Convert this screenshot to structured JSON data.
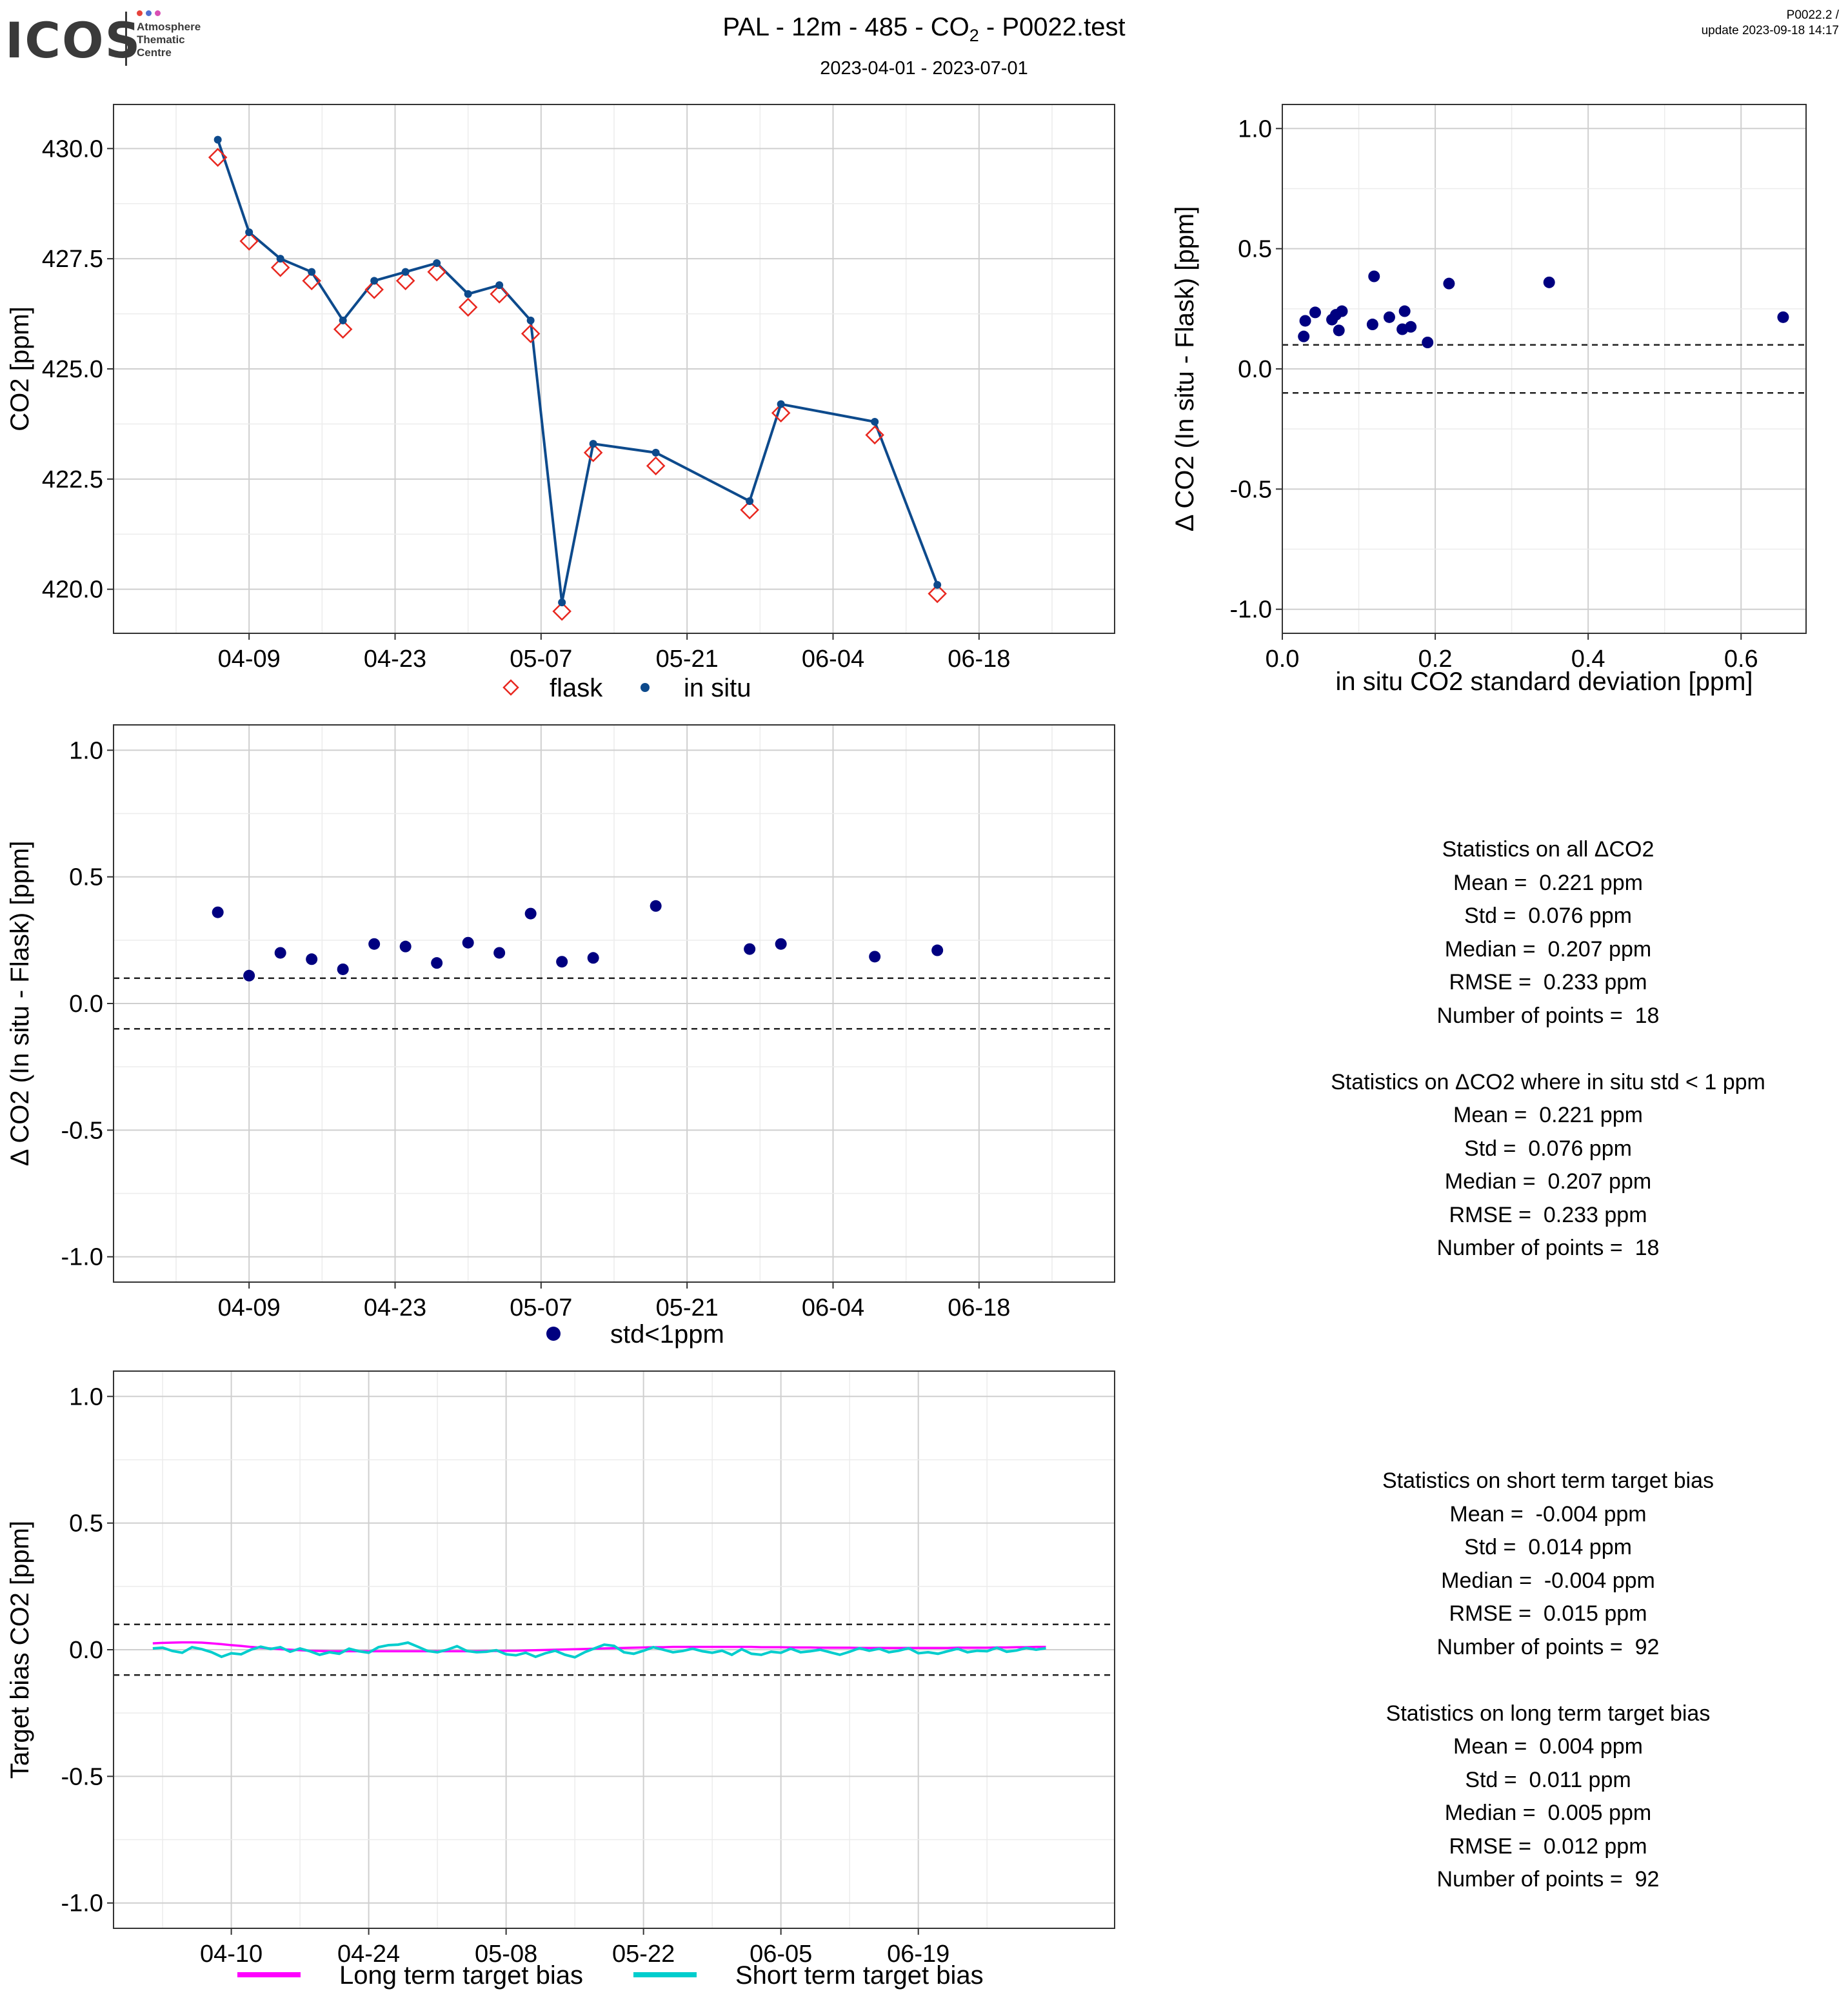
{
  "header": {
    "logo_text": "ICOS",
    "logo_subtitle": [
      "Atmosphere",
      "Thematic",
      "Centre"
    ],
    "title_main": "PAL - 12m - 485 - CO",
    "title_sub": "2",
    "title_tail": " - P0022.test",
    "subtitle": "2023-04-01 - 2023-07-01",
    "version_line1": "P0022.2 /",
    "version_line2": "update  2023-09-18 14:17"
  },
  "colors": {
    "logo_dots": [
      "#e6433c",
      "#4f6fd1",
      "#d94fb4"
    ],
    "in_situ": "#0d4a8c",
    "flask": "#e8271f",
    "delta_points": "#000080",
    "long_term": "#ff00ff",
    "short_term": "#00cdcd",
    "grid_major": "#cfcfcf",
    "grid_minor": "#ececec"
  },
  "chart_data": [
    {
      "type": "line",
      "id": "co2-timeseries",
      "ylabel": "CO2 [ppm]",
      "ylim": [
        419.0,
        431.0
      ],
      "yticks": [
        420.0,
        422.5,
        425.0,
        427.5,
        430.0
      ],
      "xticks": [
        "04-09",
        "04-23",
        "05-07",
        "05-21",
        "06-04",
        "06-18"
      ],
      "legend": [
        "flask",
        "in situ"
      ],
      "legend_position": "bottom",
      "series": [
        {
          "name": "in situ",
          "marker": "dot",
          "points": [
            [
              "04-06",
              430.2
            ],
            [
              "04-09",
              428.1
            ],
            [
              "04-12",
              427.5
            ],
            [
              "04-15",
              427.2
            ],
            [
              "04-18",
              426.1
            ],
            [
              "04-21",
              427.0
            ],
            [
              "04-24",
              427.2
            ],
            [
              "04-27",
              427.4
            ],
            [
              "04-30",
              426.7
            ],
            [
              "05-03",
              426.9
            ],
            [
              "05-06",
              426.1
            ],
            [
              "05-09",
              419.7
            ],
            [
              "05-12",
              423.3
            ],
            [
              "05-18",
              423.1
            ],
            [
              "05-27",
              422.0
            ],
            [
              "05-30",
              424.2
            ],
            [
              "06-08",
              423.8
            ],
            [
              "06-14",
              420.1
            ]
          ]
        },
        {
          "name": "flask",
          "marker": "diamond",
          "points": [
            [
              "04-06",
              429.8
            ],
            [
              "04-09",
              427.9
            ],
            [
              "04-12",
              427.3
            ],
            [
              "04-15",
              427.0
            ],
            [
              "04-18",
              425.9
            ],
            [
              "04-21",
              426.8
            ],
            [
              "04-24",
              427.0
            ],
            [
              "04-27",
              427.2
            ],
            [
              "04-30",
              426.4
            ],
            [
              "05-03",
              426.7
            ],
            [
              "05-06",
              425.8
            ],
            [
              "05-09",
              419.5
            ],
            [
              "05-12",
              423.1
            ],
            [
              "05-18",
              422.8
            ],
            [
              "05-27",
              421.8
            ],
            [
              "05-30",
              424.0
            ],
            [
              "06-08",
              423.5
            ],
            [
              "06-14",
              419.9
            ]
          ]
        }
      ]
    },
    {
      "type": "scatter",
      "id": "delta-vs-std",
      "xlabel": "in situ CO2 standard deviation [ppm]",
      "ylabel": "Δ CO2 (In situ - Flask) [ppm]",
      "xlim": [
        0.0,
        0.685
      ],
      "ylim": [
        -1.1,
        1.1
      ],
      "xticks": [
        0.0,
        0.2,
        0.4,
        0.6
      ],
      "yticks": [
        -1.0,
        -0.5,
        0.0,
        0.5,
        1.0
      ],
      "hlines": [
        0.1,
        -0.1
      ],
      "points": [
        [
          0.028,
          0.135
        ],
        [
          0.03,
          0.2
        ],
        [
          0.043,
          0.235
        ],
        [
          0.065,
          0.205
        ],
        [
          0.07,
          0.225
        ],
        [
          0.074,
          0.16
        ],
        [
          0.078,
          0.24
        ],
        [
          0.118,
          0.185
        ],
        [
          0.12,
          0.385
        ],
        [
          0.14,
          0.215
        ],
        [
          0.157,
          0.165
        ],
        [
          0.16,
          0.24
        ],
        [
          0.168,
          0.175
        ],
        [
          0.19,
          0.11
        ],
        [
          0.218,
          0.355
        ],
        [
          0.349,
          0.36
        ],
        [
          0.655,
          0.215
        ]
      ]
    },
    {
      "type": "scatter",
      "id": "delta-timeseries",
      "ylabel": "Δ CO2 (In situ - Flask) [ppm]",
      "ylim": [
        -1.1,
        1.1
      ],
      "yticks": [
        -1.0,
        -0.5,
        0.0,
        0.5,
        1.0
      ],
      "xticks": [
        "04-09",
        "04-23",
        "05-07",
        "05-21",
        "06-04",
        "06-18"
      ],
      "hlines": [
        0.1,
        -0.1
      ],
      "legend": [
        "std<1ppm"
      ],
      "legend_position": "bottom",
      "points": [
        [
          "04-06",
          0.36
        ],
        [
          "04-09",
          0.11
        ],
        [
          "04-12",
          0.2
        ],
        [
          "04-15",
          0.175
        ],
        [
          "04-18",
          0.135
        ],
        [
          "04-21",
          0.235
        ],
        [
          "04-24",
          0.225
        ],
        [
          "04-27",
          0.16
        ],
        [
          "04-30",
          0.24
        ],
        [
          "05-03",
          0.2
        ],
        [
          "05-06",
          0.355
        ],
        [
          "05-09",
          0.165
        ],
        [
          "05-12",
          0.18
        ],
        [
          "05-18",
          0.385
        ],
        [
          "05-27",
          0.215
        ],
        [
          "05-30",
          0.235
        ],
        [
          "06-08",
          0.185
        ],
        [
          "06-14",
          0.21
        ]
      ]
    },
    {
      "type": "line",
      "id": "target-bias",
      "ylabel": "Target bias CO2 [ppm]",
      "ylim": [
        -1.1,
        1.1
      ],
      "yticks": [
        -1.0,
        -0.5,
        0.0,
        0.5,
        1.0
      ],
      "xticks": [
        "04-10",
        "04-24",
        "05-08",
        "05-22",
        "06-05",
        "06-19"
      ],
      "hlines": [
        0.1,
        -0.1
      ],
      "legend": [
        "Long term target bias",
        "Short term target bias"
      ],
      "legend_position": "bottom",
      "series": [
        {
          "name": "Long term target bias",
          "start": "04-02",
          "values": [
            0.025,
            0.027,
            0.028,
            0.029,
            0.029,
            0.028,
            0.025,
            0.022,
            0.018,
            0.015,
            0.011,
            0.008,
            0.005,
            0.002,
            0.0,
            -0.002,
            -0.004,
            -0.005,
            -0.006,
            -0.006,
            -0.006,
            -0.006,
            -0.006,
            -0.006,
            -0.006,
            -0.006,
            -0.006,
            -0.006,
            -0.006,
            -0.006,
            -0.006,
            -0.006,
            -0.006,
            -0.006,
            -0.005,
            -0.005,
            -0.004,
            -0.004,
            -0.003,
            -0.002,
            -0.001,
            0.0,
            0.001,
            0.002,
            0.003,
            0.004,
            0.005,
            0.006,
            0.007,
            0.008,
            0.009,
            0.01,
            0.01,
            0.011,
            0.011,
            0.011,
            0.011,
            0.011,
            0.011,
            0.011,
            0.011,
            0.011,
            0.01,
            0.01,
            0.01,
            0.009,
            0.009,
            0.009,
            0.008,
            0.008,
            0.008,
            0.008,
            0.007,
            0.007,
            0.007,
            0.007,
            0.007,
            0.007,
            0.007,
            0.007,
            0.007,
            0.007,
            0.008,
            0.008,
            0.008,
            0.008,
            0.009,
            0.009,
            0.01,
            0.01,
            0.011,
            0.011
          ]
        },
        {
          "name": "Short term target bias",
          "start": "04-02",
          "values": [
            0.005,
            0.008,
            -0.005,
            -0.012,
            0.01,
            0.002,
            -0.01,
            -0.028,
            -0.014,
            -0.018,
            0.0,
            0.012,
            0.003,
            0.01,
            -0.008,
            0.005,
            -0.006,
            -0.02,
            -0.01,
            -0.016,
            0.004,
            -0.006,
            -0.012,
            0.01,
            0.018,
            0.02,
            0.028,
            0.012,
            -0.005,
            -0.01,
            0.0,
            0.014,
            -0.005,
            -0.01,
            -0.008,
            -0.002,
            -0.018,
            -0.022,
            -0.012,
            -0.028,
            -0.014,
            -0.004,
            -0.02,
            -0.03,
            -0.01,
            0.005,
            0.02,
            0.015,
            -0.01,
            -0.016,
            -0.004,
            0.01,
            0.0,
            -0.01,
            -0.005,
            0.004,
            -0.006,
            -0.012,
            -0.004,
            -0.02,
            0.002,
            -0.016,
            -0.02,
            -0.008,
            -0.012,
            0.004,
            -0.01,
            -0.006,
            0.0,
            -0.01,
            -0.02,
            -0.008,
            0.006,
            -0.004,
            0.004,
            -0.01,
            -0.004,
            0.006,
            -0.014,
            -0.01,
            -0.016,
            -0.006,
            0.004,
            -0.01,
            -0.004,
            -0.006,
            0.008,
            -0.008,
            -0.003,
            0.007,
            0.0,
            0.006
          ]
        }
      ]
    }
  ],
  "stats_delta": [
    "Statistics on all ΔCO2",
    "Mean =  0.221 ppm",
    "Std =  0.076 ppm",
    "Median =  0.207 ppm",
    "RMSE =  0.233 ppm",
    "Number of points =  18",
    "",
    "Statistics on ΔCO2 where in situ std < 1 ppm",
    "Mean =  0.221 ppm",
    "Std =  0.076 ppm",
    "Median =  0.207 ppm",
    "RMSE =  0.233 ppm",
    "Number of points =  18"
  ],
  "stats_bias": [
    "Statistics on short term target bias",
    "Mean =  -0.004 ppm",
    "Std =  0.014 ppm",
    "Median =  -0.004 ppm",
    "RMSE =  0.015 ppm",
    "Number of points =  92",
    "",
    "Statistics on long term target bias",
    "Mean =  0.004 ppm",
    "Std =  0.011 ppm",
    "Median =  0.005 ppm",
    "RMSE =  0.012 ppm",
    "Number of points =  92"
  ]
}
